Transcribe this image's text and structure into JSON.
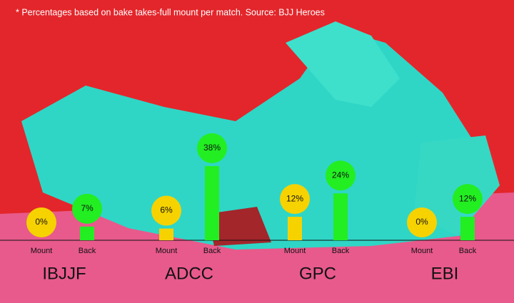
{
  "chart_data": {
    "type": "bar",
    "title": "* Percentages based on bake takes-full mount per match. Source:  BJJ Heroes",
    "categories": [
      "IBJJF",
      "ADCC",
      "GPC",
      "EBI"
    ],
    "series": [
      {
        "name": "Mount",
        "color": "#f6d200",
        "values": [
          0,
          6,
          12,
          0
        ],
        "value_labels": [
          "0%",
          "6%",
          "12%",
          "0%"
        ]
      },
      {
        "name": "Back",
        "color": "#22ee22",
        "values": [
          7,
          38,
          24,
          12
        ],
        "value_labels": [
          "7%",
          "38%",
          "24%",
          "12%"
        ]
      }
    ]
  }
}
